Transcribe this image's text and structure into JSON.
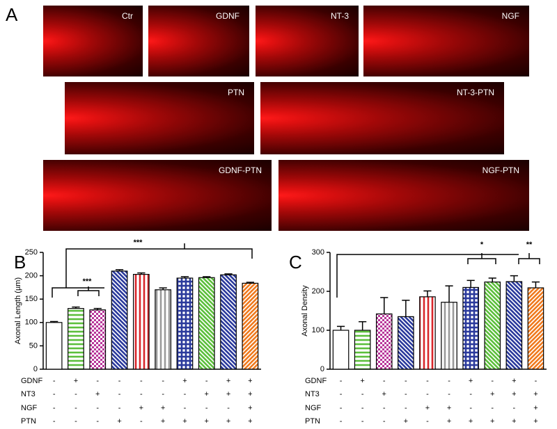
{
  "panel_a": {
    "label": "A",
    "images": [
      "Ctr",
      "GDNF",
      "NT-3",
      "NGF",
      "PTN",
      "NT-3-PTN",
      "GDNF-PTN",
      "NGF-PTN"
    ]
  },
  "chart_data": [
    {
      "type": "bar",
      "panel_label": "B",
      "y_label": "Axonal Length (µm)",
      "values": [
        100,
        130,
        127,
        210,
        203,
        170,
        195,
        196,
        202,
        184
      ],
      "errors": [
        2,
        3,
        3,
        3,
        3,
        4,
        3,
        2,
        2,
        2
      ],
      "fills": [
        {
          "color": "#ffffff",
          "hatch": "none"
        },
        {
          "color": "#5cbf3c",
          "hatch": "horizontal"
        },
        {
          "color": "#b8369a",
          "hatch": "checker"
        },
        {
          "color": "#2b3a9c",
          "hatch": "diagonal"
        },
        {
          "color": "#d8262a",
          "hatch": "vertical"
        },
        {
          "color": "#9a9a9a",
          "hatch": "vertical"
        },
        {
          "color": "#2b3a9c",
          "hatch": "grid"
        },
        {
          "color": "#5cbf3c",
          "hatch": "diagonal"
        },
        {
          "color": "#2b3a9c",
          "hatch": "diagonal"
        },
        {
          "color": "#f07a1e",
          "hatch": "diagonal-back"
        }
      ],
      "ylim": [
        0,
        250
      ],
      "yticks": [
        0,
        50,
        100,
        150,
        200,
        250
      ],
      "annotations": [
        "***",
        "***"
      ],
      "conditions": [
        {
          "name": "GDNF",
          "marks": [
            "-",
            "+",
            "-",
            "-",
            "-",
            "-",
            "+",
            "-",
            "+",
            "+"
          ]
        },
        {
          "name": "NT3",
          "marks": [
            "-",
            "-",
            "+",
            "-",
            "-",
            "-",
            "-",
            "+",
            "+",
            "+"
          ]
        },
        {
          "name": "NGF",
          "marks": [
            "-",
            "-",
            "-",
            "-",
            "+",
            "+",
            "-",
            "-",
            "-",
            "+"
          ]
        },
        {
          "name": "PTN",
          "marks": [
            "-",
            "-",
            "-",
            "+",
            "-",
            "+",
            "+",
            "+",
            "+",
            "+"
          ]
        }
      ]
    },
    {
      "type": "bar",
      "panel_label": "C",
      "y_label": "Axonal Density",
      "values": [
        100,
        100,
        142,
        135,
        186,
        172,
        210,
        224,
        225,
        209
      ],
      "errors": [
        10,
        22,
        42,
        42,
        15,
        42,
        18,
        10,
        15,
        15
      ],
      "fills": [
        {
          "color": "#ffffff",
          "hatch": "none"
        },
        {
          "color": "#5cbf3c",
          "hatch": "horizontal"
        },
        {
          "color": "#b8369a",
          "hatch": "checker"
        },
        {
          "color": "#2b3a9c",
          "hatch": "diagonal"
        },
        {
          "color": "#d8262a",
          "hatch": "vertical"
        },
        {
          "color": "#9a9a9a",
          "hatch": "vertical"
        },
        {
          "color": "#2b3a9c",
          "hatch": "grid"
        },
        {
          "color": "#5cbf3c",
          "hatch": "diagonal"
        },
        {
          "color": "#2b3a9c",
          "hatch": "diagonal"
        },
        {
          "color": "#f07a1e",
          "hatch": "diagonal-back"
        }
      ],
      "ylim": [
        0,
        300
      ],
      "yticks": [
        0,
        100,
        200,
        300
      ],
      "annotations": [
        "*",
        "**"
      ],
      "conditions": [
        {
          "name": "GDNF",
          "marks": [
            "-",
            "+",
            "-",
            "-",
            "-",
            "-",
            "+",
            "-",
            "+",
            "-"
          ]
        },
        {
          "name": "NT3",
          "marks": [
            "-",
            "-",
            "+",
            "-",
            "-",
            "-",
            "-",
            "+",
            "+",
            "+"
          ]
        },
        {
          "name": "NGF",
          "marks": [
            "-",
            "-",
            "-",
            "-",
            "+",
            "+",
            "-",
            "-",
            "-",
            "+"
          ]
        },
        {
          "name": "PTN",
          "marks": [
            "-",
            "-",
            "-",
            "+",
            "-",
            "+",
            "+",
            "+",
            "+",
            "+"
          ]
        }
      ]
    }
  ]
}
